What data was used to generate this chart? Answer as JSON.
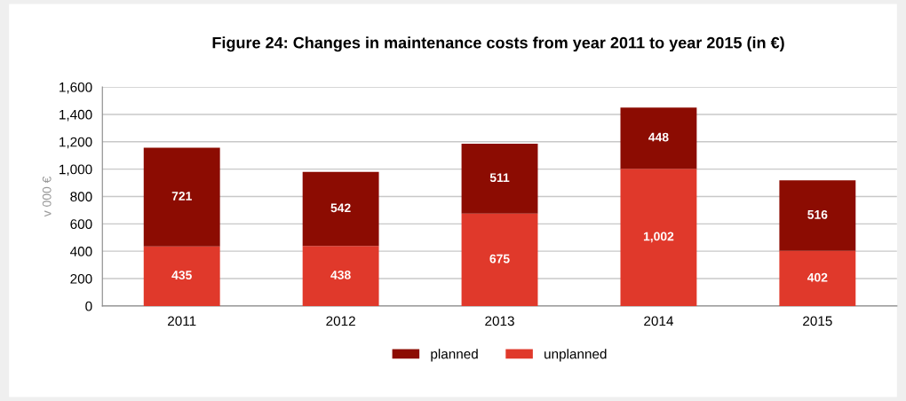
{
  "chart_data": {
    "type": "bar",
    "title": "Figure 24: Changes in maintenance costs from year 2011 to year 2015 (in €)",
    "ylabel": "v 000 €",
    "categories": [
      "2011",
      "2012",
      "2013",
      "2014",
      "2015"
    ],
    "stacked": true,
    "series": [
      {
        "name": "unplanned",
        "color": "#e0392b",
        "values": [
          435,
          438,
          675,
          1002,
          402
        ],
        "value_labels": [
          "435",
          "438",
          "675",
          "1,002",
          "402"
        ]
      },
      {
        "name": "planned",
        "color": "#8c0c02",
        "values": [
          721,
          542,
          511,
          448,
          516
        ],
        "value_labels": [
          "721",
          "542",
          "511",
          "448",
          "516"
        ]
      }
    ],
    "ylim": [
      0,
      1600
    ],
    "yticks": [
      0,
      {
        "value": 200,
        "label": "200"
      },
      {
        "value": 400,
        "label": "400"
      },
      {
        "value": 600,
        "label": "600"
      },
      {
        "value": 800,
        "label": "800"
      },
      {
        "value": 1000,
        "label": "1,000"
      },
      {
        "value": 1200,
        "label": "1,200"
      },
      {
        "value": 1400,
        "label": "1,400"
      },
      {
        "value": 1600,
        "label": "1,600"
      }
    ],
    "grid": "y",
    "legend": "bottom"
  }
}
